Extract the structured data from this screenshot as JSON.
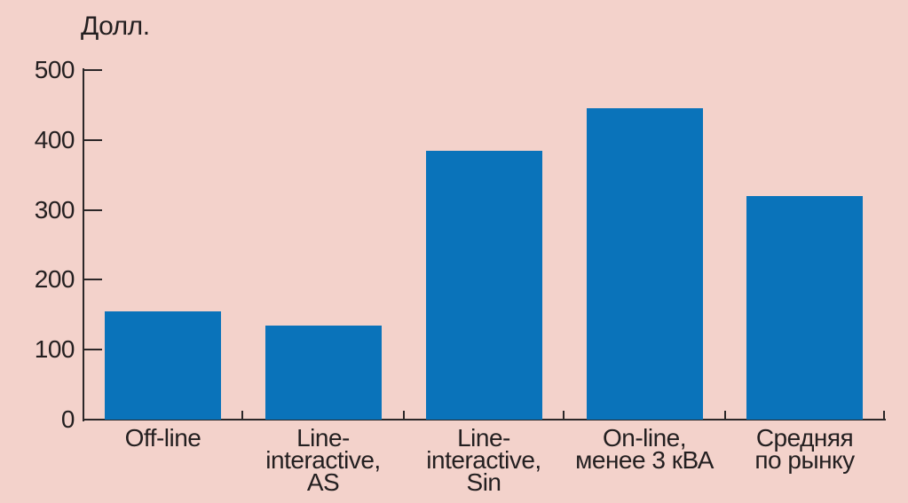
{
  "chart_data": {
    "type": "bar",
    "title": "",
    "ylabel": "Долл.",
    "xlabel": "",
    "categories": [
      "Off-line",
      "Line-\ninteractive,\nAS",
      "Line-\ninteractive,\nSin",
      "On-line,\nменее 3 кВА",
      "Средняя\nпо рынку"
    ],
    "values": [
      155,
      135,
      385,
      445,
      320
    ],
    "ylim": [
      0,
      500
    ],
    "yticks": [
      0,
      100,
      200,
      300,
      400,
      500
    ],
    "grid": false,
    "legend": "none",
    "colors": {
      "background": "#f3d2cb",
      "bar": "#0a73ba",
      "ink": "#231f20",
      "axis": "#2b2728"
    }
  }
}
